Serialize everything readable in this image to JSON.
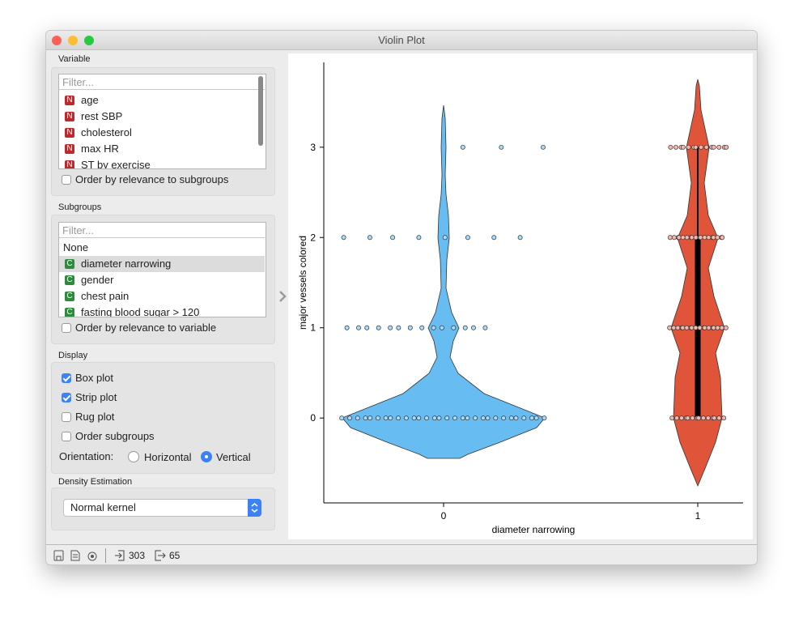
{
  "window": {
    "title": "Violin Plot"
  },
  "variable": {
    "label": "Variable",
    "filter": "Filter...",
    "items": [
      {
        "badge": "N",
        "name": "age"
      },
      {
        "badge": "N",
        "name": "rest SBP"
      },
      {
        "badge": "N",
        "name": "cholesterol"
      },
      {
        "badge": "N",
        "name": "max HR"
      },
      {
        "badge": "N",
        "name": "ST by exercise"
      }
    ],
    "order": {
      "label": "Order by relevance to subgroups",
      "checked": false
    }
  },
  "subgroups": {
    "label": "Subgroups",
    "filter": "Filter...",
    "none": "None",
    "items": [
      {
        "badge": "C",
        "name": "diameter narrowing",
        "selected": true
      },
      {
        "badge": "C",
        "name": "gender",
        "selected": false
      },
      {
        "badge": "C",
        "name": "chest pain",
        "selected": false
      },
      {
        "badge": "C",
        "name": "fasting blood sugar > 120",
        "selected": false
      }
    ],
    "order": {
      "label": "Order by relevance to variable",
      "checked": false
    }
  },
  "display": {
    "label": "Display",
    "options": [
      {
        "label": "Box plot",
        "checked": true
      },
      {
        "label": "Strip plot",
        "checked": true
      },
      {
        "label": "Rug plot",
        "checked": false
      },
      {
        "label": "Order subgroups",
        "checked": false
      }
    ],
    "orientation": {
      "label": "Orientation:",
      "options": [
        {
          "label": "Horizontal",
          "selected": false
        },
        {
          "label": "Vertical",
          "selected": true
        }
      ]
    }
  },
  "density": {
    "label": "Density Estimation",
    "value": "Normal kernel"
  },
  "status": {
    "input": 303,
    "output": 65
  },
  "chart_data": {
    "type": "violin",
    "x_label": "diameter narrowing",
    "y_label": "major vessels colored",
    "categories": [
      "0",
      "1"
    ],
    "ylim": [
      -0.94,
      3.94
    ],
    "yticks": [
      0,
      1,
      2,
      3
    ],
    "groups": [
      {
        "color": "#67bdf2",
        "point_color": "#a9dcfa",
        "points": [
          0,
          0,
          0,
          0,
          0,
          0,
          0,
          0,
          0,
          0,
          0,
          0,
          0,
          0,
          0,
          0,
          0,
          0,
          0,
          0,
          0,
          0,
          0,
          0,
          0,
          0,
          0,
          0,
          0,
          0,
          1,
          1,
          1,
          1,
          1,
          1,
          1,
          1,
          1,
          1,
          1,
          1,
          1,
          1,
          2,
          2,
          2,
          2,
          2,
          2,
          2,
          2,
          3,
          3,
          3
        ]
      },
      {
        "color": "#e0553a",
        "point_color": "#f4b9ae",
        "points": [
          0,
          0,
          0,
          0,
          0,
          0,
          0,
          0,
          0,
          0,
          0,
          0,
          0,
          0,
          1,
          1,
          1,
          1,
          1,
          1,
          1,
          1,
          1,
          1,
          1,
          1,
          1,
          1,
          1,
          1,
          1,
          1,
          2,
          2,
          2,
          2,
          2,
          2,
          2,
          2,
          2,
          2,
          2,
          2,
          2,
          2,
          2,
          2,
          2,
          2,
          3,
          3,
          3,
          3,
          3,
          3,
          3,
          3,
          3,
          3,
          3,
          3,
          3,
          3
        ],
        "box": {
          "min": 0,
          "q1": 0,
          "median": 1,
          "q3": 2,
          "max": 3
        }
      }
    ]
  }
}
